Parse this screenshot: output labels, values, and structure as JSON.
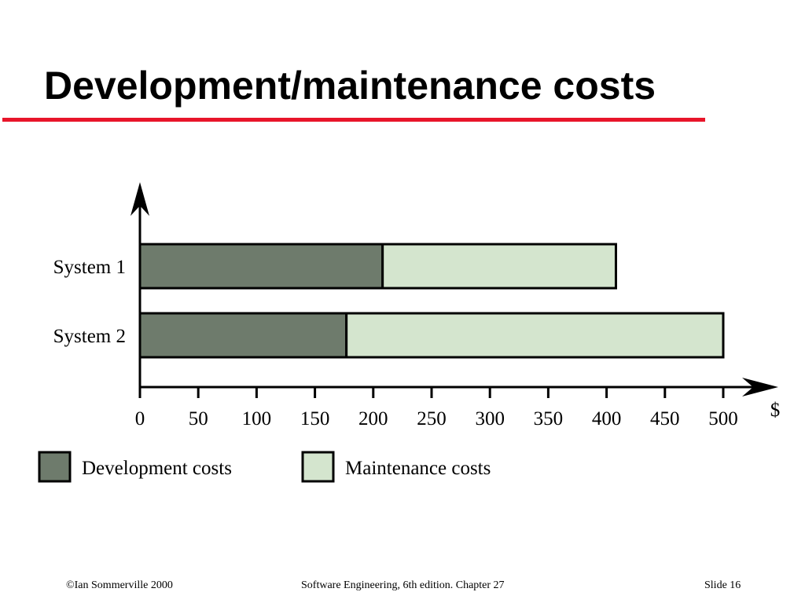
{
  "slide": {
    "title": "Development/maintenance costs",
    "title_rule_color": "#e8152a"
  },
  "chart_data": {
    "type": "bar",
    "orientation": "horizontal",
    "stacked": true,
    "categories": [
      "System 1",
      "System 2"
    ],
    "series": [
      {
        "name": "Development costs",
        "values": [
          208,
          177
        ],
        "color": "#6e7b6c"
      },
      {
        "name": "Maintenance costs",
        "values": [
          200,
          323
        ],
        "color": "#d4e5ce"
      }
    ],
    "xlim": [
      0,
      500
    ],
    "x_ticks": [
      0,
      50,
      100,
      150,
      200,
      250,
      300,
      350,
      400,
      450,
      500
    ],
    "x_tick_labels": [
      "0",
      "50",
      "100",
      "150",
      "200",
      "250",
      "300",
      "350",
      "400",
      "450",
      "500"
    ],
    "xlabel": "$",
    "ylabel": "",
    "grid": false,
    "legend_position": "bottom"
  },
  "footer": {
    "left": "©Ian Sommerville 2000",
    "center": "Software Engineering, 6th edition. Chapter 27",
    "right": "Slide 16"
  }
}
